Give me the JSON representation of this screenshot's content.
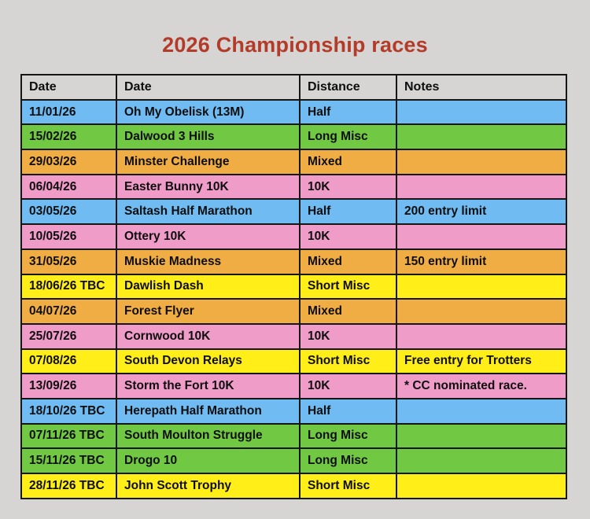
{
  "title": "2026 Championship races",
  "colors": {
    "page_bg": "#d6d5d3",
    "title": "#b23b2a",
    "header_bg": "#d6d5d3",
    "border": "#161616",
    "row_fills": {
      "blue": "#6fbbf2",
      "green": "#70c843",
      "orange": "#f0ad43",
      "pink": "#f09cc8",
      "yellow": "#ffee18"
    }
  },
  "table": {
    "headers": [
      "Date",
      "Date",
      "Distance",
      "Notes"
    ],
    "rows": [
      {
        "date": "11/01/26",
        "race": "Oh My Obelisk (13M)",
        "distance": "Half",
        "notes": "",
        "color": "blue"
      },
      {
        "date": "15/02/26",
        "race": "Dalwood 3 Hills",
        "distance": "Long Misc",
        "notes": "",
        "color": "green"
      },
      {
        "date": "29/03/26",
        "race": "Minster Challenge",
        "distance": "Mixed",
        "notes": "",
        "color": "orange"
      },
      {
        "date": "06/04/26",
        "race": "Easter Bunny 10K",
        "distance": "10K",
        "notes": "",
        "color": "pink"
      },
      {
        "date": "03/05/26",
        "race": "Saltash Half Marathon",
        "distance": "Half",
        "notes": "200 entry limit",
        "color": "blue"
      },
      {
        "date": "10/05/26",
        "race": "Ottery 10K",
        "distance": "10K",
        "notes": "",
        "color": "pink"
      },
      {
        "date": "31/05/26",
        "race": "Muskie Madness",
        "distance": "Mixed",
        "notes": "150 entry limit",
        "color": "orange"
      },
      {
        "date": "18/06/26 TBC",
        "race": "Dawlish Dash",
        "distance": "Short Misc",
        "notes": "",
        "color": "yellow"
      },
      {
        "date": "04/07/26",
        "race": "Forest Flyer",
        "distance": "Mixed",
        "notes": "",
        "color": "orange"
      },
      {
        "date": "25/07/26",
        "race": "Cornwood 10K",
        "distance": "10K",
        "notes": "",
        "color": "pink"
      },
      {
        "date": "07/08/26",
        "race": "South Devon Relays",
        "distance": "Short Misc",
        "notes": "Free entry for Trotters",
        "color": "yellow"
      },
      {
        "date": "13/09/26",
        "race": "Storm the Fort 10K",
        "distance": "10K",
        "notes": "* CC nominated race.",
        "color": "pink"
      },
      {
        "date": "18/10/26 TBC",
        "race": "Herepath Half Marathon",
        "distance": "Half",
        "notes": "",
        "color": "blue"
      },
      {
        "date": "07/11/26 TBC",
        "race": "South Moulton Struggle",
        "distance": "Long Misc",
        "notes": "",
        "color": "green"
      },
      {
        "date": "15/11/26 TBC",
        "race": "Drogo 10",
        "distance": "Long Misc",
        "notes": "",
        "color": "green"
      },
      {
        "date": "28/11/26 TBC",
        "race": "John Scott Trophy",
        "distance": "Short Misc",
        "notes": "",
        "color": "yellow"
      }
    ]
  }
}
